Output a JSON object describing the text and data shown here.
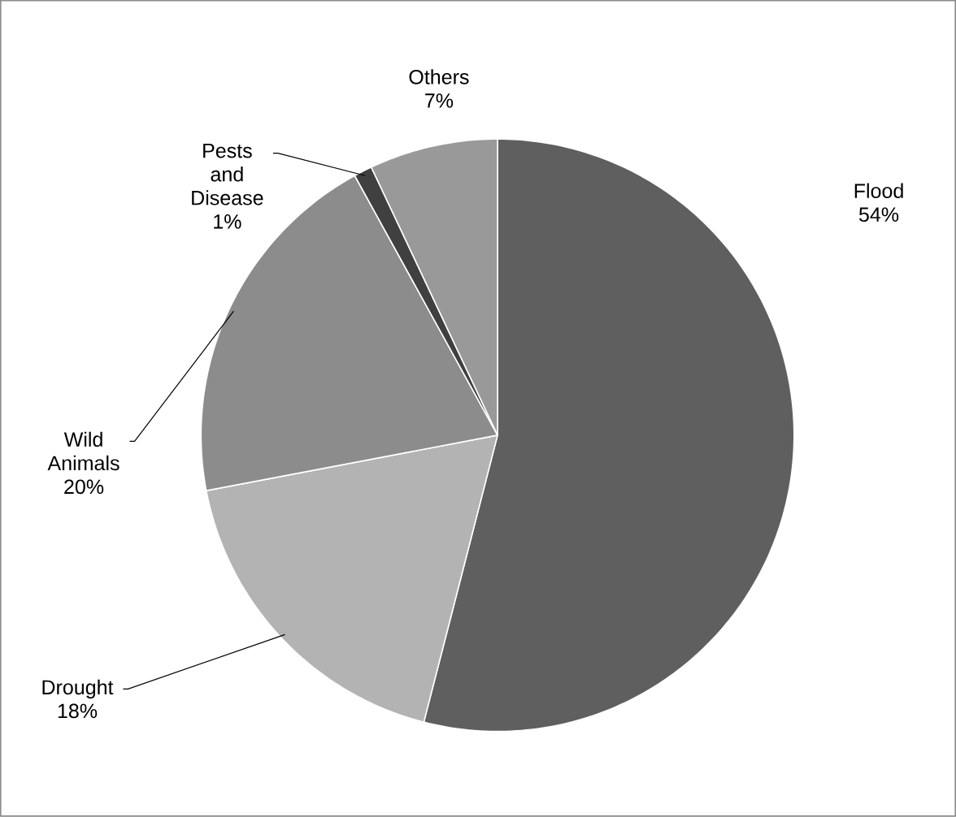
{
  "chart_data": {
    "type": "pie",
    "categories": [
      "Flood",
      "Drought",
      "Wild Animals",
      "Pests and Disease",
      "Others"
    ],
    "values": [
      54,
      18,
      20,
      1,
      7
    ],
    "colors": [
      "#5f5f5f",
      "#b3b3b3",
      "#8c8c8c",
      "#404040",
      "#999999"
    ],
    "value_labels": [
      "54%",
      "18%",
      "20%",
      "1%",
      "7%"
    ]
  }
}
